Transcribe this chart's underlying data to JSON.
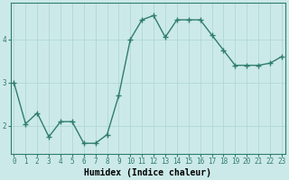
{
  "x": [
    0,
    1,
    2,
    3,
    4,
    5,
    6,
    7,
    8,
    9,
    10,
    11,
    12,
    13,
    14,
    15,
    16,
    17,
    18,
    19,
    20,
    21,
    22,
    23
  ],
  "y": [
    3.0,
    2.05,
    2.3,
    1.75,
    2.1,
    2.1,
    1.6,
    1.6,
    1.8,
    2.7,
    4.0,
    4.45,
    4.55,
    4.05,
    4.45,
    4.45,
    4.45,
    4.1,
    3.75,
    3.4,
    3.4,
    3.4,
    3.45,
    3.6
  ],
  "line_color": "#2e7d6e",
  "marker": "+",
  "marker_size": 4,
  "marker_linewidth": 1.0,
  "line_width": 1.0,
  "bg_color": "#cce9e9",
  "grid_color": "#b0d8d8",
  "xlabel": "Humidex (Indice chaleur)",
  "xlabel_fontsize": 7,
  "xlabel_fontweight": "bold",
  "tick_fontsize": 5.5,
  "ylim": [
    1.35,
    4.85
  ],
  "yticks": [
    2,
    3,
    4
  ],
  "xlim": [
    -0.3,
    23.3
  ]
}
